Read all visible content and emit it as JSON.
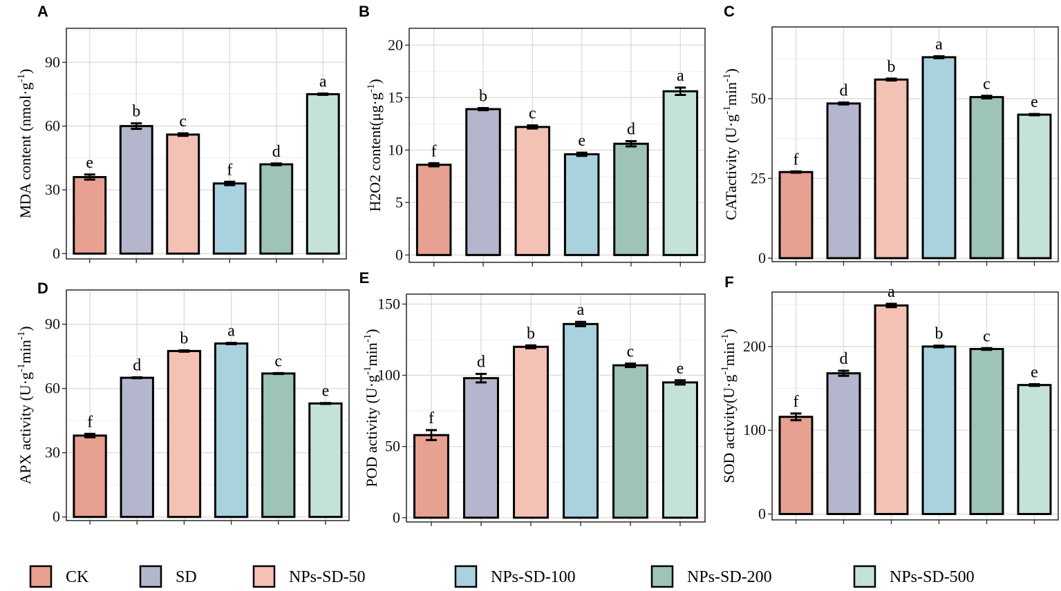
{
  "legend": {
    "groups": [
      "CK",
      "SD",
      "NPs-SD-50",
      "NPs-SD-100",
      "NPs-SD-200",
      "NPs-SD-500"
    ],
    "colors": [
      "#e8a090",
      "#b3b6cc",
      "#f4c2b4",
      "#a9d2de",
      "#9dc4b5",
      "#c4e2da"
    ]
  },
  "chart_data": [
    {
      "type": "bar",
      "panel": "A",
      "ylabel": "MDA content (nmol·g",
      "ylabel_sup": "-1",
      "ylabel_post": ")",
      "categories": [
        "CK",
        "SD",
        "NPs-SD-50",
        "NPs-SD-100",
        "NPs-SD-200",
        "NPs-SD-500"
      ],
      "values": [
        36,
        60,
        56,
        33,
        42,
        75
      ],
      "errors": [
        1.2,
        1.3,
        0.6,
        0.8,
        0.4,
        0.3
      ],
      "letters": [
        "e",
        "b",
        "c",
        "f",
        "d",
        "a"
      ],
      "yticks": [
        0,
        30,
        60,
        90
      ],
      "ylim": [
        -2.5,
        106
      ]
    },
    {
      "type": "bar",
      "panel": "B",
      "ylabel": "H2O2 content(μg·g",
      "ylabel_sup": "-1",
      "ylabel_post": ")",
      "categories": [
        "CK",
        "SD",
        "NPs-SD-50",
        "NPs-SD-100",
        "NPs-SD-200",
        "NPs-SD-500"
      ],
      "values": [
        8.6,
        13.9,
        12.2,
        9.6,
        10.6,
        15.6
      ],
      "errors": [
        0.15,
        0.1,
        0.15,
        0.15,
        0.25,
        0.35
      ],
      "letters": [
        "f",
        "b",
        "c",
        "e",
        "d",
        "a"
      ],
      "yticks": [
        0,
        5,
        10,
        15,
        20
      ],
      "ylim": [
        -0.7,
        21.6
      ]
    },
    {
      "type": "bar",
      "panel": "C",
      "ylabel": "CATactivity (U·g",
      "ylabel_sup": "-1",
      "ylabel_post": "min",
      "ylabel_sup2": "-1",
      "ylabel_post2": ")",
      "categories": [
        "CK",
        "SD",
        "NPs-SD-50",
        "NPs-SD-100",
        "NPs-SD-200",
        "NPs-SD-500"
      ],
      "values": [
        27,
        48.5,
        56,
        63,
        50.5,
        45
      ],
      "errors": [
        0.2,
        0.3,
        0.3,
        0.3,
        0.4,
        0.2
      ],
      "letters": [
        "f",
        "d",
        "b",
        "a",
        "c",
        "e"
      ],
      "yticks": [
        0,
        25,
        50
      ],
      "ylim": [
        -1.1,
        72.5
      ]
    },
    {
      "type": "bar",
      "panel": "D",
      "ylabel": "APX activity (U·g",
      "ylabel_sup": "-1",
      "ylabel_post": "min",
      "ylabel_sup2": "-1",
      "ylabel_post2": ")",
      "categories": [
        "CK",
        "SD",
        "NPs-SD-50",
        "NPs-SD-100",
        "NPs-SD-200",
        "NPs-SD-500"
      ],
      "values": [
        38,
        65,
        77.5,
        81,
        67,
        53
      ],
      "errors": [
        0.8,
        0.2,
        0.3,
        0.3,
        0.2,
        0.2
      ],
      "letters": [
        "f",
        "d",
        "b",
        "a",
        "c",
        "e"
      ],
      "yticks": [
        0,
        30,
        60,
        90
      ],
      "ylim": [
        -1.7,
        106
      ]
    },
    {
      "type": "bar",
      "panel": "E",
      "ylabel": "POD activity (U·g",
      "ylabel_sup": "-1",
      "ylabel_post": "min",
      "ylabel_sup2": "-1",
      "ylabel_post2": ")",
      "categories": [
        "CK",
        "SD",
        "NPs-SD-50",
        "NPs-SD-100",
        "NPs-SD-200",
        "NPs-SD-500"
      ],
      "values": [
        58,
        98,
        120,
        136,
        107,
        95
      ],
      "errors": [
        3.5,
        3,
        1,
        1.5,
        1.2,
        1.5
      ],
      "letters": [
        "f",
        "d",
        "b",
        "a",
        "c",
        "e"
      ],
      "yticks": [
        0,
        50,
        100,
        150
      ],
      "ylim": [
        -3,
        157
      ]
    },
    {
      "type": "bar",
      "panel": "F",
      "ylabel": "SOD activity(U·g",
      "ylabel_sup": "-1",
      "ylabel_post": "min",
      "ylabel_sup2": "-1",
      "ylabel_post2": ")",
      "categories": [
        "CK",
        "SD",
        "NPs-SD-50",
        "NPs-SD-100",
        "NPs-SD-200",
        "NPs-SD-500"
      ],
      "values": [
        116,
        168,
        249,
        200,
        197,
        154
      ],
      "errors": [
        4,
        3,
        2,
        1,
        1,
        1
      ],
      "letters": [
        "f",
        "d",
        "a",
        "b",
        "c",
        "e"
      ],
      "yticks": [
        0,
        100,
        200
      ],
      "ylim": [
        -7,
        265
      ]
    }
  ]
}
